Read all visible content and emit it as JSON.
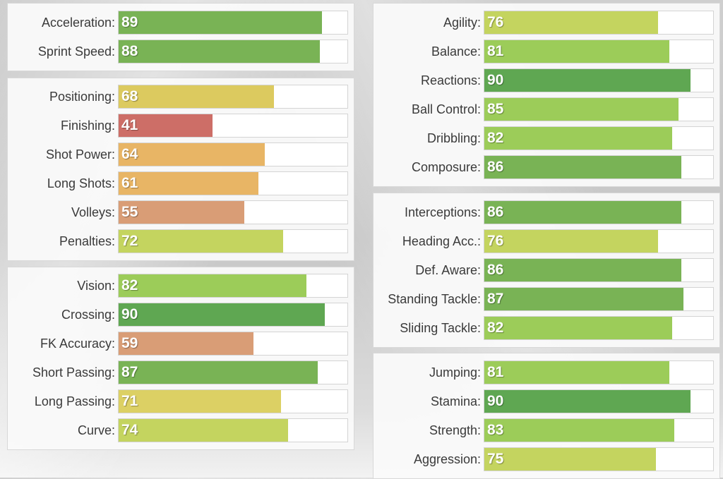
{
  "colors": {
    "bright_green": "#5fa752",
    "green": "#79b355",
    "light_green": "#9ccc59",
    "yellow_green": "#c4d45f",
    "yellow": "#dcd064",
    "orange": "#e8b565",
    "salmon": "#d99d76",
    "red": "#cd6e67"
  },
  "panels": [
    {
      "id": "pace",
      "stats": [
        {
          "label": "Acceleration",
          "value": 89,
          "color": "#79b355"
        },
        {
          "label": "Sprint Speed",
          "value": 88,
          "color": "#79b355"
        }
      ]
    },
    {
      "id": "shooting",
      "stats": [
        {
          "label": "Positioning",
          "value": 68,
          "color": "#dcca5f"
        },
        {
          "label": "Finishing",
          "value": 41,
          "color": "#cd6e67"
        },
        {
          "label": "Shot Power",
          "value": 64,
          "color": "#e8b565"
        },
        {
          "label": "Long Shots",
          "value": 61,
          "color": "#e8b565"
        },
        {
          "label": "Volleys",
          "value": 55,
          "color": "#d99d76"
        },
        {
          "label": "Penalties",
          "value": 72,
          "color": "#c4d45f"
        }
      ]
    },
    {
      "id": "passing",
      "stats": [
        {
          "label": "Vision",
          "value": 82,
          "color": "#9ccc59"
        },
        {
          "label": "Crossing",
          "value": 90,
          "color": "#5fa752"
        },
        {
          "label": "FK Accuracy",
          "value": 59,
          "color": "#d99d76"
        },
        {
          "label": "Short Passing",
          "value": 87,
          "color": "#79b355"
        },
        {
          "label": "Long Passing",
          "value": 71,
          "color": "#dcd064"
        },
        {
          "label": "Curve",
          "value": 74,
          "color": "#c4d45f"
        }
      ]
    },
    {
      "id": "dribbling",
      "stats": [
        {
          "label": "Agility",
          "value": 76,
          "color": "#c4d45f"
        },
        {
          "label": "Balance",
          "value": 81,
          "color": "#9ccc59"
        },
        {
          "label": "Reactions",
          "value": 90,
          "color": "#5fa752"
        },
        {
          "label": "Ball Control",
          "value": 85,
          "color": "#9ccc59"
        },
        {
          "label": "Dribbling",
          "value": 82,
          "color": "#9ccc59"
        },
        {
          "label": "Composure",
          "value": 86,
          "color": "#79b355"
        }
      ]
    },
    {
      "id": "defending",
      "stats": [
        {
          "label": "Interceptions",
          "value": 86,
          "color": "#79b355"
        },
        {
          "label": "Heading Acc.",
          "value": 76,
          "color": "#c4d45f"
        },
        {
          "label": "Def. Aware",
          "value": 86,
          "color": "#79b355"
        },
        {
          "label": "Standing Tackle",
          "value": 87,
          "color": "#79b355"
        },
        {
          "label": "Sliding Tackle",
          "value": 82,
          "color": "#9ccc59"
        }
      ]
    },
    {
      "id": "physical",
      "stats": [
        {
          "label": "Jumping",
          "value": 81,
          "color": "#9ccc59"
        },
        {
          "label": "Stamina",
          "value": 90,
          "color": "#5fa752"
        },
        {
          "label": "Strength",
          "value": 83,
          "color": "#9ccc59"
        },
        {
          "label": "Aggression",
          "value": 75,
          "color": "#c4d45f"
        }
      ]
    }
  ]
}
